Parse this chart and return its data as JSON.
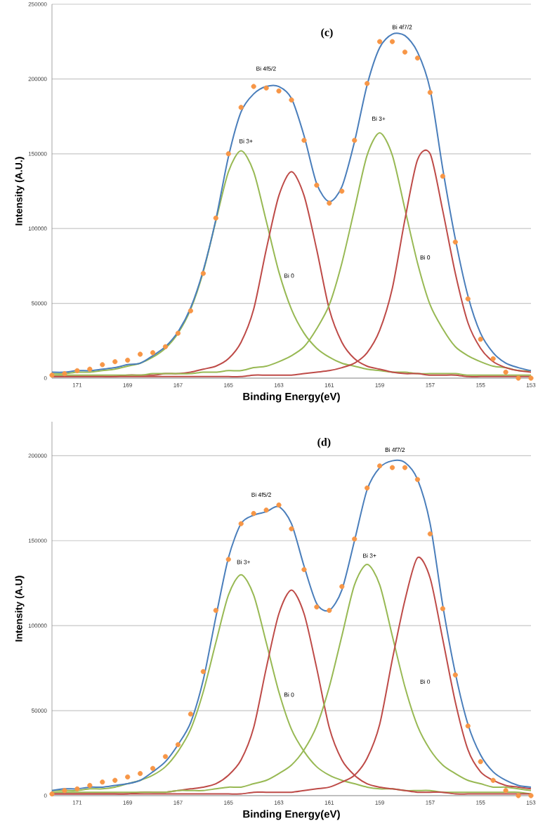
{
  "chart_data": [
    {
      "type": "line",
      "xlabel": "Binding Energy(eV)",
      "ylabel": "Intensity (A.U.)",
      "xlim": [
        172,
        153
      ],
      "ylim": [
        0,
        250000
      ],
      "xticks": [
        171,
        169,
        167,
        165,
        163,
        161,
        159,
        157,
        155,
        153
      ],
      "yticks": [
        0,
        50000,
        100000,
        150000,
        200000,
        250000
      ],
      "grid": "y",
      "x": [
        172,
        171.5,
        171,
        170.5,
        170,
        169.5,
        169,
        168.5,
        168,
        167.5,
        167,
        166.5,
        166,
        165.5,
        165,
        164.5,
        164,
        163.5,
        163,
        162.5,
        162,
        161.5,
        161,
        160.5,
        160,
        159.5,
        159,
        158.5,
        158,
        157.5,
        157,
        156.5,
        156,
        155.5,
        155,
        154.5,
        154,
        153.5,
        153
      ],
      "series": [
        {
          "color": "#98b954",
          "values": [
            3000,
            3000,
            4000,
            4000,
            5000,
            6000,
            8000,
            10000,
            14000,
            20000,
            30000,
            46000,
            71000,
            105000,
            138000,
            152000,
            138000,
            105000,
            71000,
            46000,
            30000,
            20000,
            14000,
            10000,
            8000,
            6000,
            5000,
            4000,
            4000,
            3000,
            3000,
            3000,
            3000,
            2000,
            2000,
            2000,
            2000,
            2000,
            2000
          ]
        },
        {
          "color": "#be4b48",
          "values": [
            1000,
            1000,
            1000,
            1000,
            1000,
            1000,
            2000,
            2000,
            2000,
            3000,
            3000,
            4000,
            6000,
            8000,
            13000,
            24000,
            46000,
            86000,
            122000,
            138000,
            122000,
            86000,
            46000,
            24000,
            13000,
            8000,
            6000,
            4000,
            3000,
            3000,
            2000,
            2000,
            2000,
            1000,
            1000,
            1000,
            1000,
            1000,
            1000
          ]
        },
        {
          "color": "#98b954",
          "values": [
            2000,
            2000,
            2000,
            2000,
            2000,
            2000,
            2000,
            2000,
            3000,
            3000,
            3000,
            3000,
            4000,
            4000,
            5000,
            5000,
            7000,
            8000,
            11000,
            15000,
            21000,
            33000,
            49000,
            77000,
            113000,
            149000,
            164000,
            149000,
            113000,
            77000,
            49000,
            33000,
            21000,
            15000,
            11000,
            8000,
            7000,
            5000,
            5000
          ]
        },
        {
          "color": "#be4b48",
          "values": [
            1000,
            1000,
            1000,
            1000,
            1000,
            1000,
            1000,
            1000,
            1000,
            1000,
            1000,
            1000,
            1000,
            1000,
            1000,
            1000,
            2000,
            2000,
            2000,
            2000,
            3000,
            4000,
            5000,
            7000,
            10000,
            17000,
            32000,
            60000,
            106000,
            146000,
            150000,
            112000,
            70000,
            37000,
            20000,
            11000,
            7000,
            5000,
            4000
          ]
        },
        {
          "color": "#4a7ebb",
          "values": [
            4000,
            4000,
            5000,
            5000,
            6000,
            7000,
            9000,
            10000,
            15000,
            21000,
            31000,
            47000,
            72000,
            106000,
            148000,
            178000,
            190000,
            195000,
            195000,
            187000,
            162000,
            130000,
            118000,
            128000,
            158000,
            196000,
            221000,
            230000,
            229000,
            218000,
            193000,
            140000,
            93000,
            55000,
            30000,
            17000,
            10000,
            7000,
            5000
          ]
        },
        {
          "type": "scatter",
          "color": "#f79646",
          "marker": "circle",
          "values": [
            2000,
            3000,
            5000,
            6000,
            9000,
            11000,
            12000,
            16000,
            17000,
            21000,
            30000,
            45000,
            70000,
            107000,
            150000,
            181000,
            195000,
            194000,
            192000,
            186000,
            159000,
            129000,
            117000,
            125000,
            159000,
            197000,
            225000,
            225000,
            218000,
            214000,
            191000,
            135000,
            91000,
            53000,
            26000,
            13000,
            4000,
            0,
            0
          ]
        }
      ],
      "annotations": [
        "(c)",
        "Bi 4f5/2",
        "Bi 4f7/2",
        "Bi 3+",
        "Bi 3+",
        "Bi 0",
        "Bi 0"
      ]
    },
    {
      "type": "line",
      "xlabel": "Binding Energy(eV)",
      "ylabel": "Intensity  (A.U)",
      "xlim": [
        172,
        153
      ],
      "ylim": [
        0,
        220000
      ],
      "xticks": [
        171,
        169,
        167,
        165,
        163,
        161,
        159,
        157,
        155,
        153
      ],
      "yticks": [
        0,
        50000,
        100000,
        150000,
        200000
      ],
      "grid": "y",
      "x": [
        172,
        171.5,
        171,
        170.5,
        170,
        169.5,
        169,
        168.5,
        168,
        167.5,
        167,
        166.5,
        166,
        165.5,
        165,
        164.5,
        164,
        163.5,
        163,
        162.5,
        162,
        161.5,
        161,
        160.5,
        160,
        159.5,
        159,
        158.5,
        158,
        157.5,
        157,
        156.5,
        156,
        155.5,
        155,
        154.5,
        154,
        153.5,
        153
      ],
      "series": [
        {
          "color": "#98b954",
          "values": [
            3000,
            3000,
            3000,
            4000,
            4000,
            5000,
            7000,
            9000,
            12000,
            17000,
            26000,
            39000,
            61000,
            90000,
            118000,
            130000,
            118000,
            90000,
            61000,
            39000,
            26000,
            17000,
            12000,
            9000,
            7000,
            5000,
            4000,
            4000,
            3000,
            3000,
            3000,
            2000,
            2000,
            2000,
            2000,
            2000,
            2000,
            2000,
            1000
          ]
        },
        {
          "color": "#be4b48",
          "values": [
            1000,
            1000,
            1000,
            1000,
            1000,
            1000,
            1000,
            2000,
            2000,
            2000,
            3000,
            4000,
            5000,
            7000,
            12000,
            21000,
            40000,
            75000,
            107000,
            121000,
            107000,
            75000,
            40000,
            21000,
            12000,
            7000,
            5000,
            4000,
            3000,
            2000,
            2000,
            2000,
            1000,
            1000,
            1000,
            1000,
            1000,
            1000,
            1000
          ]
        },
        {
          "color": "#98b954",
          "values": [
            2000,
            2000,
            2000,
            2000,
            2000,
            2000,
            2000,
            2000,
            2000,
            2000,
            3000,
            3000,
            3000,
            4000,
            5000,
            5000,
            7000,
            9000,
            13000,
            18000,
            27000,
            41000,
            64000,
            94000,
            124000,
            136000,
            124000,
            94000,
            64000,
            41000,
            27000,
            18000,
            13000,
            9000,
            7000,
            5000,
            5000,
            4000,
            3000
          ]
        },
        {
          "color": "#be4b48",
          "values": [
            1000,
            1000,
            1000,
            1000,
            1000,
            1000,
            1000,
            1000,
            1000,
            1000,
            1000,
            1000,
            1000,
            1000,
            1000,
            1000,
            2000,
            2000,
            2000,
            2000,
            3000,
            4000,
            5000,
            8000,
            12000,
            22000,
            42000,
            80000,
            115000,
            140000,
            128000,
            92000,
            55000,
            27000,
            14000,
            9000,
            6000,
            5000,
            4000
          ]
        },
        {
          "color": "#4a7ebb",
          "values": [
            3000,
            4000,
            4000,
            5000,
            5000,
            6000,
            7000,
            9000,
            14000,
            20000,
            30000,
            43000,
            68000,
            105000,
            140000,
            160000,
            165000,
            167000,
            170000,
            160000,
            135000,
            113000,
            109000,
            121000,
            150000,
            180000,
            193000,
            197000,
            196000,
            186000,
            160000,
            112000,
            72000,
            42000,
            24000,
            14000,
            9000,
            6000,
            5000
          ]
        },
        {
          "type": "scatter",
          "color": "#f79646",
          "marker": "circle",
          "values": [
            1000,
            3000,
            4000,
            6000,
            8000,
            9000,
            11000,
            13000,
            16000,
            23000,
            30000,
            48000,
            73000,
            109000,
            139000,
            160000,
            166000,
            168000,
            171000,
            157000,
            133000,
            111000,
            109000,
            123000,
            151000,
            181000,
            194000,
            193000,
            193000,
            186000,
            154000,
            110000,
            71000,
            41000,
            20000,
            9000,
            3000,
            0,
            0
          ]
        }
      ],
      "annotations": [
        "(d)",
        "Bi 4f5/2",
        "Bi 4f7/2",
        "Bi 3+",
        "Bi 3+",
        "Bi 0",
        "Bi 0"
      ]
    }
  ]
}
